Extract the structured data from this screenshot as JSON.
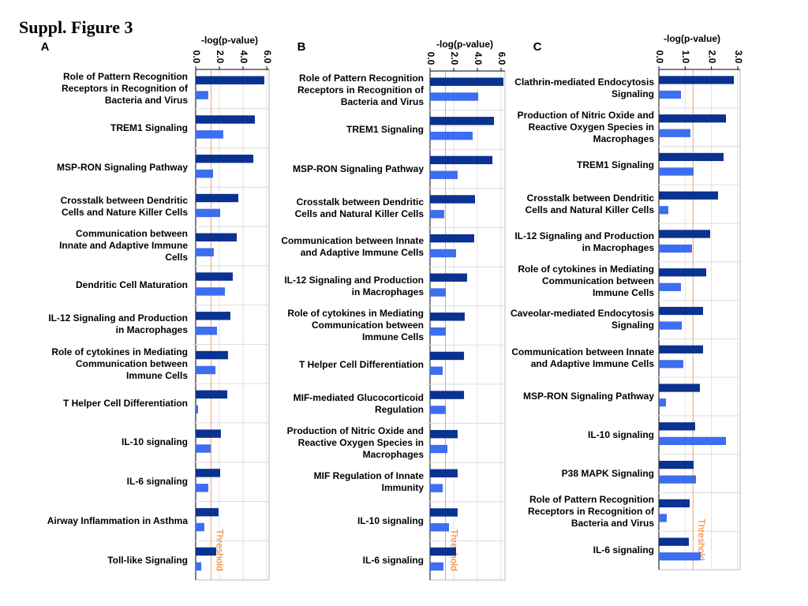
{
  "title": "Suppl. Figure 3",
  "chart_data": [
    {
      "type": "bar",
      "panel": "A",
      "xlabel": "-log(p-value)",
      "categories": [
        "Role of Pattern Recognition Receptors in Recognition of Bacteria and Virus",
        "TREM1 Signaling",
        "MSP-RON Signaling Pathway",
        "Crosstalk between Dendritic Cells and Nature Killer Cells",
        "Communication between Innate and Adaptive Immune Cells",
        "Dendritic Cell Maturation",
        "IL-12 Signaling and Production in Macrophages",
        "Role of cytokines in Mediating Communication between Immune Cells",
        "T Helper Cell Differentiation",
        "IL-10 signaling",
        "IL-6 signaling",
        "Airway Inflammation in Asthma",
        "Toll-like Signaling"
      ],
      "series": [
        {
          "color": "#0a3290",
          "values": [
            5.8,
            5.0,
            4.87,
            3.6,
            3.47,
            3.13,
            2.93,
            2.73,
            2.67,
            2.13,
            2.07,
            1.93,
            1.73
          ]
        },
        {
          "color": "#3d6ef0",
          "values": [
            1.07,
            2.33,
            1.47,
            2.07,
            1.53,
            2.47,
            1.8,
            1.67,
            0.2,
            1.27,
            1.07,
            0.73,
            0.47
          ]
        }
      ],
      "xlim": [
        0,
        6
      ],
      "xticks": [
        {
          "value": 0,
          "label": "0.0"
        },
        {
          "value": 2,
          "label": "2.0"
        },
        {
          "value": 4,
          "label": "4.0"
        },
        {
          "value": 6,
          "label": "6.0"
        }
      ],
      "threshold": {
        "value": 1.3,
        "label": "Threshold"
      },
      "grid": true
    },
    {
      "type": "bar",
      "panel": "B",
      "xlabel": "-log(p-value)",
      "categories": [
        "Role of Pattern Recognition Receptors in Recognition of Bacteria and Virus",
        "TREM1 Signaling",
        "MSP-RON Signaling Pathway",
        "Crosstalk between Dendritic Cells and Natural Killer Cells",
        "Communication between Innate and Adaptive Immune Cells",
        "IL-12 Signaling and Production in Macrophages",
        "Role of cytokines in Mediating Communication between Immune Cells",
        "T Helper Cell Differentiation",
        "MIF-mediated Glucocorticoid Regulation",
        "Production of Nitric Oxide and Reactive Oxygen Species in Macrophages",
        "MIF Regulation of Innate Immunity",
        "IL-10 signaling",
        "IL-6 signaling"
      ],
      "series": [
        {
          "color": "#0a3290",
          "values": [
            6.2,
            5.4,
            5.27,
            3.8,
            3.73,
            3.13,
            2.93,
            2.87,
            2.87,
            2.33,
            2.33,
            2.33,
            2.2
          ]
        },
        {
          "color": "#3d6ef0",
          "values": [
            4.07,
            3.6,
            2.33,
            1.2,
            2.2,
            1.33,
            1.33,
            1.07,
            1.33,
            1.47,
            1.07,
            1.6,
            1.13
          ]
        }
      ],
      "xlim": [
        0,
        6
      ],
      "xticks": [
        {
          "value": 0,
          "label": "0.0"
        },
        {
          "value": 2,
          "label": "2.0"
        },
        {
          "value": 4,
          "label": "4.0"
        },
        {
          "value": 6,
          "label": "6.0"
        }
      ],
      "threshold": {
        "value": 1.3,
        "label": "Threshold"
      },
      "grid": true
    },
    {
      "type": "bar",
      "panel": "C",
      "xlabel": "-log(p-value)",
      "categories": [
        "Clathrin-mediated Endocytosis Signaling",
        "Production of Nitric Oxide and Reactive Oxygen Species in Macrophages",
        "TREM1 Signaling",
        "Crosstalk between Dendritic Cells and Natural Killer Cells",
        "IL-12 Signaling and Production in Macrophages",
        "Role of cytokines in Mediating Communication between Immune Cells",
        "Caveolar-mediated Endocytosis Signaling",
        "Communication between Innate and Adaptive Immune Cells",
        "MSP-RON Signaling Pathway",
        "IL-10 signaling",
        "P38 MAPK Signaling",
        "Role of Pattern Recognition Receptors in Recognition of Bacteria and Virus",
        "IL-6 signaling"
      ],
      "series": [
        {
          "color": "#0a3290",
          "values": [
            2.85,
            2.55,
            2.46,
            2.25,
            1.95,
            1.8,
            1.68,
            1.68,
            1.56,
            1.38,
            1.32,
            1.17,
            1.14
          ]
        },
        {
          "color": "#3d6ef0",
          "values": [
            0.84,
            1.2,
            1.32,
            0.36,
            1.26,
            0.84,
            0.87,
            0.93,
            0.27,
            2.55,
            1.41,
            0.3,
            1.59
          ]
        }
      ],
      "xlim": [
        0,
        3
      ],
      "xticks": [
        {
          "value": 0,
          "label": "0.0"
        },
        {
          "value": 1,
          "label": "1.0"
        },
        {
          "value": 2,
          "label": "2.0"
        },
        {
          "value": 3,
          "label": "3.0"
        }
      ],
      "threshold": {
        "value": 1.3,
        "label": "Threshold"
      },
      "grid": true
    }
  ]
}
